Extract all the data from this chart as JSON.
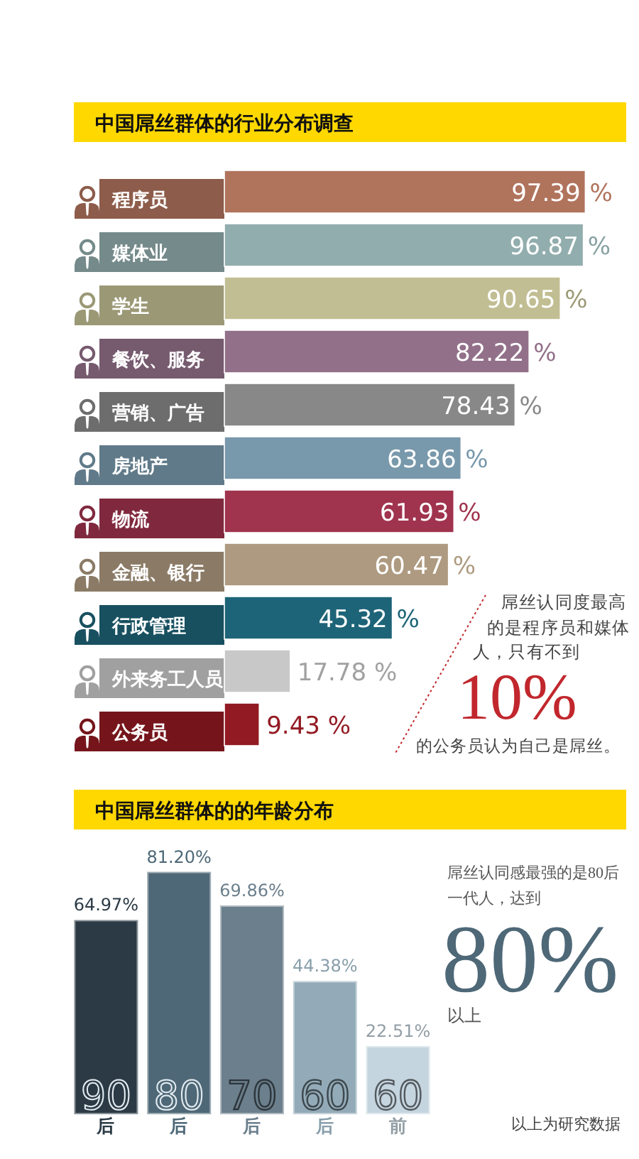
{
  "chart_data": [
    {
      "type": "bar",
      "orientation": "horizontal",
      "title": "中国屌丝群体的行业分布调查",
      "categories": [
        "程序员",
        "媒体业",
        "学生",
        "餐饮、服务",
        "营销、广告",
        "房地产",
        "物流",
        "金融、银行",
        "行政管理",
        "外来务工人员",
        "公务员"
      ],
      "values": [
        97.39,
        96.87,
        90.65,
        82.22,
        78.43,
        63.86,
        61.93,
        60.47,
        45.32,
        17.78,
        9.43
      ],
      "colors": [
        "#b0735c",
        "#92adad",
        "#c2be93",
        "#93708a",
        "#888888",
        "#7898ab",
        "#a0334e",
        "#ae9a80",
        "#1e6478",
        "#c8c8c8",
        "#921a22"
      ],
      "value_labels": [
        "97.39 %",
        "96.87 %",
        "90.65 %",
        "82.22 %",
        "78.43 %",
        "63.86 %",
        "61.93 %",
        "60.47 %",
        "45.32 %",
        "17.78 %",
        "9.43 %"
      ],
      "annotations": [
        "屌丝认同度最高的是程序员和媒体人，只有不到",
        "10%",
        "的公务员认为自己是屌丝。"
      ]
    },
    {
      "type": "bar",
      "title": "中国屌丝群体的的年龄分布",
      "categories": [
        "90后",
        "80后",
        "70后",
        "60后",
        "60前"
      ],
      "values": [
        64.97,
        81.2,
        69.86,
        44.38,
        22.51
      ],
      "colors": [
        "#2b3a45",
        "#4e6877",
        "#6b7f8c",
        "#93abb8",
        "#c5d5df"
      ],
      "value_labels": [
        "64.97%",
        "81.20%",
        "69.86%",
        "44.38%",
        "22.51%"
      ],
      "annotations": [
        "屌丝认同感最强的是80后一代人，达到",
        "80%",
        "以上",
        "以上为研究数据"
      ]
    }
  ]
}
